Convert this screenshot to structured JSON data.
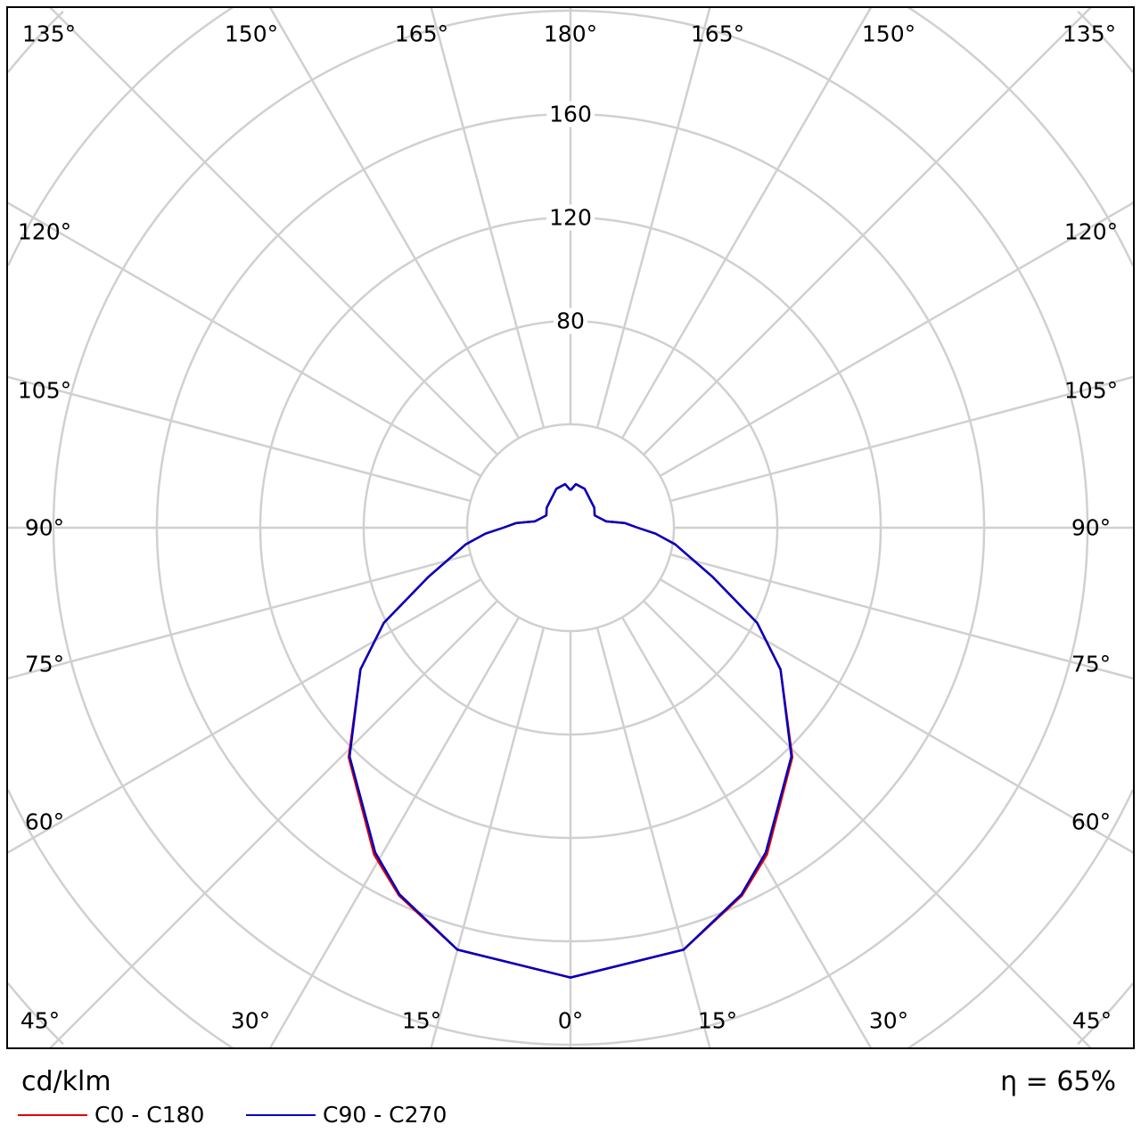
{
  "chart_data": {
    "type": "polar-line",
    "unit_label": "cd/klm",
    "efficiency": "η = 65%",
    "radial_ticks": [
      80,
      120,
      160
    ],
    "radial_rings": [
      40,
      80,
      120,
      160,
      200
    ],
    "angle_labels": {
      "bottom": [
        "45°",
        "30°",
        "15°",
        "0°",
        "15°",
        "30°",
        "45°"
      ],
      "sides": [
        "60°",
        "75°",
        "90°",
        "105°",
        "120°"
      ],
      "top": [
        "135°",
        "150°",
        "165°",
        "180°",
        "165°",
        "150°",
        "135°"
      ]
    },
    "grid": true,
    "angles_deg": [
      0,
      15,
      25,
      31,
      44,
      56,
      63,
      71,
      81,
      86,
      90,
      95,
      100,
      117,
      130,
      160,
      173,
      180
    ],
    "series": [
      {
        "name": "C0 - C180",
        "color": "#e00000",
        "values": [
          174,
          169,
          157,
          147.5,
          123.5,
          98,
          81,
          58,
          41,
          33,
          26,
          21,
          14,
          10.5,
          12,
          16,
          17,
          14.5
        ]
      },
      {
        "name": "C90 - C270",
        "color": "#0000c0",
        "values": [
          174,
          169,
          156.5,
          146.6,
          123,
          98,
          81,
          58,
          41,
          33,
          26,
          21,
          14,
          10.5,
          12,
          16,
          17,
          14.5
        ]
      }
    ]
  }
}
